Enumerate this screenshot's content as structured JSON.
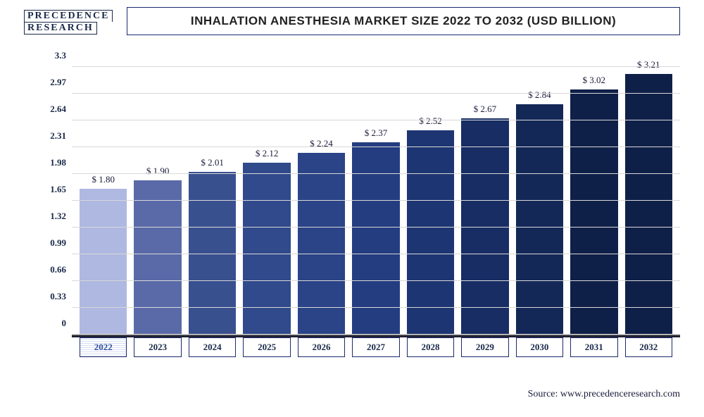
{
  "logo": {
    "line1": "PRECEDENCE",
    "line2": "RESEARCH"
  },
  "title": "INHALATION ANESTHESIA MARKET SIZE 2022 TO 2032 (USD BILLION)",
  "source": "Source: www.precedenceresearch.com",
  "chart": {
    "type": "bar",
    "ymin": 0,
    "ymax": 3.5,
    "ytick_step": 0.33,
    "yticks": [
      "0",
      "0.33",
      "0.66",
      "0.99",
      "1.32",
      "1.65",
      "1.98",
      "2.31",
      "2.64",
      "2.97",
      "3.3"
    ],
    "grid_color": "#d8d8d8",
    "axis_color": "#888888",
    "tick_font_family": "Times New Roman",
    "tick_fontsize": 13,
    "tick_color": "#1a2a4a",
    "title_fontsize": 17,
    "title_color": "#222222",
    "bar_label_fontsize": 13,
    "bar_label_prefix": "$ ",
    "bar_width_ratio": 0.78,
    "background_color": "#ffffff",
    "xcat_border_color": "#1a2a6c",
    "categories": [
      "2022",
      "2023",
      "2024",
      "2025",
      "2026",
      "2027",
      "2028",
      "2029",
      "2030",
      "2031",
      "2032"
    ],
    "values": [
      1.8,
      1.9,
      2.01,
      2.12,
      2.24,
      2.37,
      2.52,
      2.67,
      2.84,
      3.02,
      3.21
    ],
    "value_labels": [
      "$ 1.80",
      "$ 1.90",
      "$ 2.01",
      "$ 2.12",
      "$ 2.24",
      "$ 2.37",
      "$ 2.52",
      "$ 2.67",
      "$ 2.84",
      "$ 3.02",
      "$ 3.21"
    ],
    "bar_colors": [
      "#aeb8e0",
      "#5a6aa8",
      "#39508f",
      "#304a8c",
      "#2a4487",
      "#243d80",
      "#1d3572",
      "#172d64",
      "#142858",
      "#0f2048",
      "#0f2048"
    ],
    "first_category_hatched": true
  }
}
